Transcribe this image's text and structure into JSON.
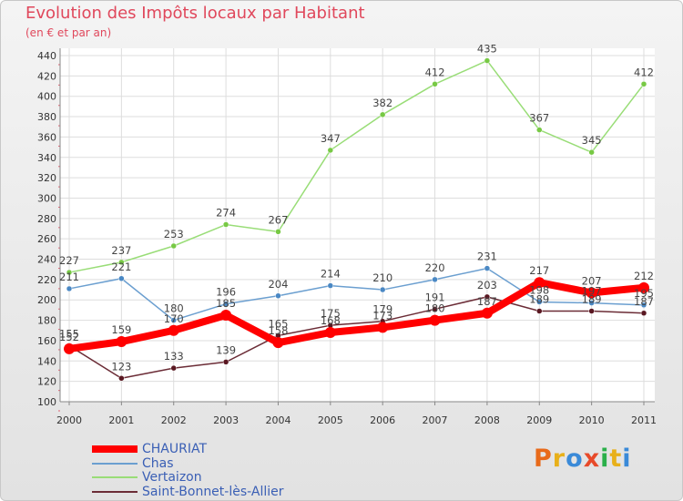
{
  "chart_data": {
    "type": "line",
    "title": "Evolution des Impôts locaux par Habitant",
    "subtitle": "(en € et par an)",
    "x": [
      "2000",
      "2001",
      "2002",
      "2003",
      "2004",
      "2005",
      "2006",
      "2007",
      "2008",
      "2009",
      "2010",
      "2011"
    ],
    "ylim": [
      100,
      440
    ],
    "yticks": [
      100,
      120,
      140,
      160,
      180,
      200,
      220,
      240,
      260,
      280,
      300,
      320,
      340,
      360,
      380,
      400,
      420,
      440
    ],
    "series": [
      {
        "name": "Vertaizon",
        "color": "#99dd77",
        "marker": "#77c944",
        "values": [
          227,
          237,
          253,
          274,
          267,
          347,
          382,
          412,
          435,
          367,
          345,
          412
        ]
      },
      {
        "name": "Chas",
        "color": "#6b9fd0",
        "marker": "#4a88c4",
        "values": [
          211,
          221,
          180,
          196,
          204,
          214,
          210,
          220,
          231,
          198,
          197,
          195
        ]
      },
      {
        "name": "Saint-Bonnet-lès-Allier",
        "color": "#6b2c36",
        "marker": "#5a1822",
        "values": [
          155,
          123,
          133,
          139,
          165,
          175,
          179,
          191,
          203,
          189,
          189,
          187
        ]
      },
      {
        "name": "CHAURIAT",
        "color": "#ff0000",
        "marker": "#ff0000",
        "values": [
          152,
          159,
          170,
          185,
          158,
          168,
          173,
          180,
          187,
          217,
          207,
          212
        ]
      }
    ],
    "labels": {
      "Vertaizon": [
        "227",
        "237",
        "253",
        "274",
        "267",
        "347",
        "382",
        "412",
        "435",
        "367",
        "345",
        "412"
      ],
      "Chas": [
        "211",
        "221",
        "180",
        "196",
        "204",
        "214",
        "210",
        "220",
        "231",
        "198",
        "197",
        "195"
      ],
      "Saint-Bonnet-lès-Allier": [
        "155",
        "123",
        "133",
        "139",
        "165",
        "175",
        "179",
        "191",
        "203",
        "189",
        "189",
        "187"
      ],
      "CHAURIAT": [
        "152",
        "159",
        "170",
        "185",
        "158",
        "168",
        "173",
        "180",
        "187",
        "217",
        "207",
        "212"
      ]
    },
    "legend": [
      "CHAURIAT",
      "Chas",
      "Vertaizon",
      "Saint-Bonnet-lès-Allier"
    ]
  },
  "logo": {
    "text": "Proxiti"
  }
}
